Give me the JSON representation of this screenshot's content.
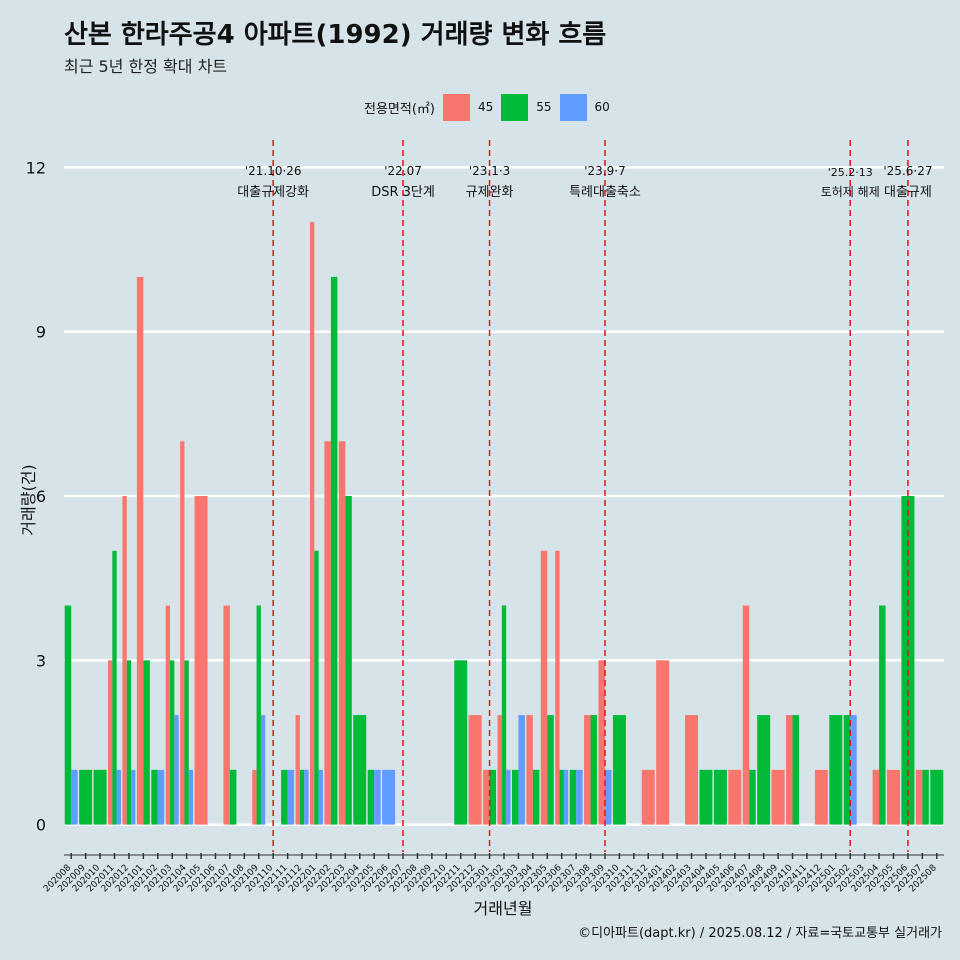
{
  "title": "산본 한라주공4 아파트(1992) 거래량 변화 흐름",
  "subtitle": "최근 5년 한정 확대 차트",
  "caption": "©디아파트(dapt.kr) / 2025.08.12 / 자료=국토교통부 실거래가",
  "legend": {
    "title": "전용면적(㎡)",
    "items": [
      {
        "label": "45",
        "color": "#f8766d"
      },
      {
        "label": "55",
        "color": "#00ba38"
      },
      {
        "label": "60",
        "color": "#619cff"
      }
    ]
  },
  "chart_data": {
    "type": "bar",
    "xlabel": "거래년월",
    "ylabel": "거래량(건)",
    "ylim": [
      -0.5,
      12.5
    ],
    "yticks": [
      0,
      3,
      6,
      9,
      12
    ],
    "grid": true,
    "legend_position": "top",
    "categories": [
      "202008",
      "202009",
      "202010",
      "202011",
      "202012",
      "202101",
      "202102",
      "202103",
      "202104",
      "202105",
      "202106",
      "202107",
      "202108",
      "202109",
      "202110",
      "202111",
      "202112",
      "202201",
      "202202",
      "202203",
      "202204",
      "202205",
      "202206",
      "202207",
      "202208",
      "202209",
      "202210",
      "202211",
      "202212",
      "202301",
      "202302",
      "202303",
      "202304",
      "202305",
      "202306",
      "202307",
      "202308",
      "202309",
      "202310",
      "202311",
      "202312",
      "202401",
      "202402",
      "202403",
      "202404",
      "202405",
      "202406",
      "202407",
      "202408",
      "202409",
      "202410",
      "202411",
      "202412",
      "202501",
      "202502",
      "202503",
      "202504",
      "202505",
      "202506",
      "202507",
      "202508"
    ],
    "series": [
      {
        "name": "45",
        "color": "#f8766d",
        "values": [
          0,
          0,
          0,
          3,
          6,
          10,
          0,
          4,
          7,
          6,
          0,
          4,
          0,
          1,
          0,
          0,
          2,
          11,
          7,
          7,
          0,
          0,
          0,
          0,
          0,
          0,
          0,
          0,
          2,
          1,
          2,
          0,
          2,
          5,
          5,
          0,
          2,
          3,
          0,
          0,
          1,
          3,
          0,
          2,
          0,
          0,
          1,
          4,
          0,
          1,
          2,
          0,
          1,
          0,
          0,
          0,
          1,
          1,
          0,
          1,
          0
        ]
      },
      {
        "name": "55",
        "color": "#00ba38",
        "values": [
          4,
          1,
          1,
          5,
          3,
          3,
          1,
          3,
          3,
          0,
          0,
          1,
          0,
          4,
          0,
          1,
          1,
          5,
          10,
          6,
          2,
          1,
          0,
          0,
          0,
          0,
          0,
          3,
          0,
          1,
          4,
          1,
          1,
          2,
          1,
          1,
          2,
          0,
          2,
          0,
          0,
          0,
          0,
          0,
          1,
          1,
          0,
          1,
          2,
          0,
          2,
          0,
          0,
          2,
          2,
          0,
          4,
          0,
          6,
          1,
          1
        ]
      },
      {
        "name": "60",
        "color": "#619cff",
        "values": [
          1,
          0,
          0,
          1,
          1,
          0,
          1,
          2,
          1,
          0,
          0,
          0,
          0,
          2,
          0,
          1,
          1,
          1,
          0,
          0,
          0,
          1,
          1,
          0,
          0,
          0,
          0,
          0,
          0,
          0,
          1,
          2,
          0,
          0,
          1,
          1,
          0,
          1,
          0,
          0,
          0,
          0,
          0,
          0,
          0,
          0,
          0,
          0,
          0,
          0,
          0,
          0,
          0,
          0,
          2,
          0,
          0,
          0,
          0,
          0,
          0
        ]
      }
    ],
    "annotations": [
      {
        "category": "202110",
        "date": "'21.10·26",
        "label": "대출규제강화"
      },
      {
        "category": "202207",
        "date": "'22.07",
        "label": "DSR 3단계"
      },
      {
        "category": "202301",
        "date": "'23.1·3",
        "label": "규제완화"
      },
      {
        "category": "202309",
        "date": "'23.9·7",
        "label": "특례대출축소"
      },
      {
        "category": "202502",
        "date": "'25.2·13",
        "label": "토허제 해제"
      },
      {
        "category": "202506",
        "date": "'25.6·27",
        "label": "대출규제"
      }
    ]
  }
}
